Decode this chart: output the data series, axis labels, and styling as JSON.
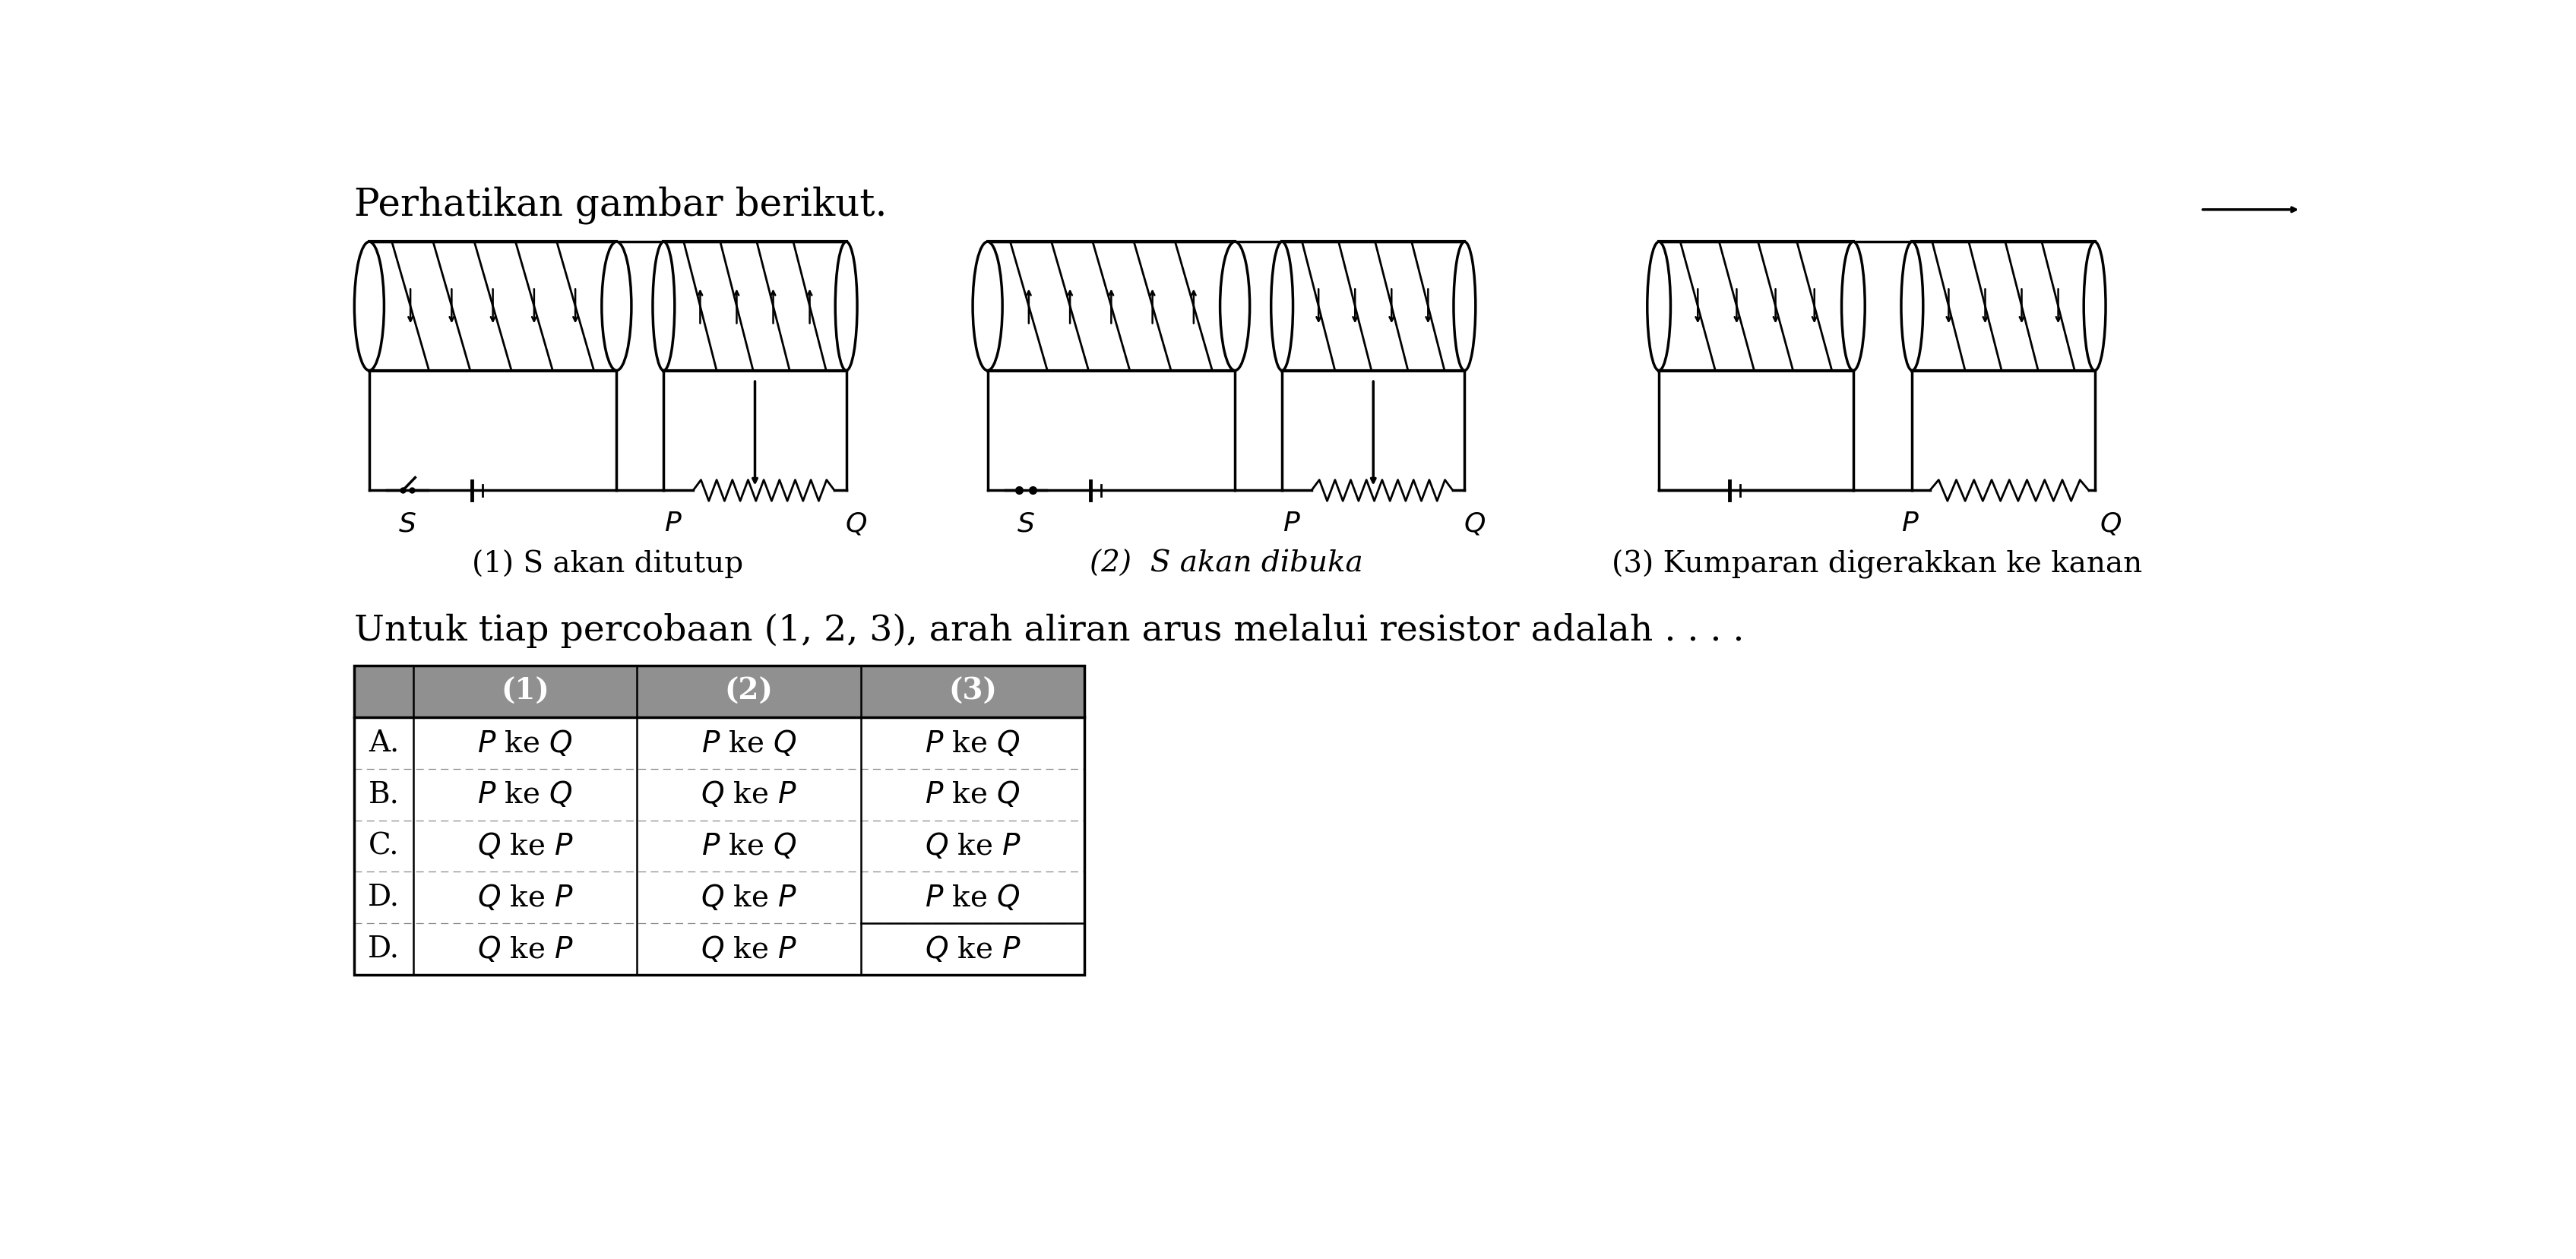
{
  "title": "Perhatikan gambar berikut.",
  "question": "Untuk tiap percobaan (1, 2, 3), arah aliran arus melalui resistor adalah . . . .",
  "diagram_labels": [
    "(1) S akan ditutup",
    "(2)  S akan dibuka",
    "(3) Kumparan digerakkan ke kanan"
  ],
  "table_header": [
    "",
    "(1)",
    "(2)",
    "(3)"
  ],
  "table_rows": [
    [
      "A.",
      "P ke Q",
      "P ke Q",
      "P ke Q"
    ],
    [
      "B.",
      "P ke Q",
      "Q ke P",
      "P ke Q"
    ],
    [
      "C.",
      "Q ke P",
      "P ke Q",
      "Q ke P"
    ],
    [
      "D.",
      "Q ke P",
      "Q ke P",
      "P ke Q"
    ],
    [
      "D.",
      "Q ke P",
      "Q ke P",
      "Q ke P"
    ]
  ],
  "bg_color": "#ffffff",
  "text_color": "#000000",
  "table_header_bg": "#909090",
  "table_header_text": "#ffffff",
  "table_border_color": "#000000",
  "font_size_title": 36,
  "font_size_question": 34,
  "font_size_label": 28,
  "font_size_table": 28,
  "font_size_circuit": 26
}
